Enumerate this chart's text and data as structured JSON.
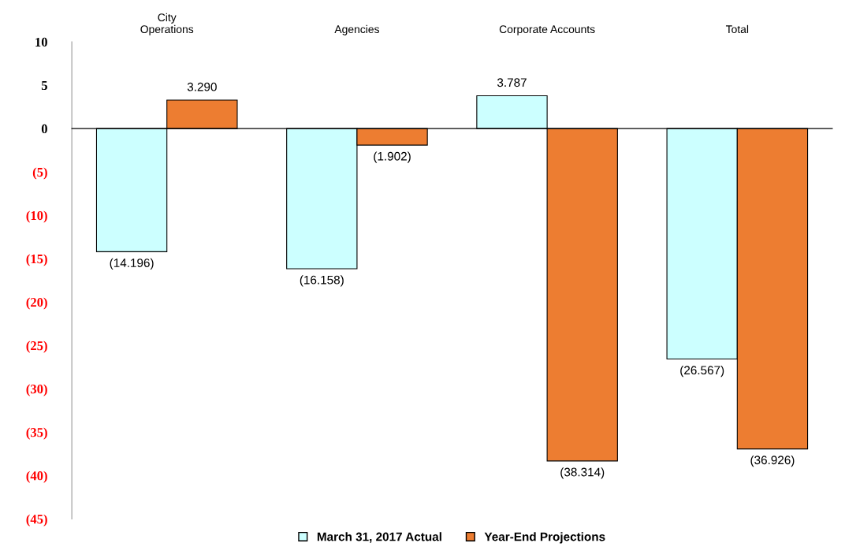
{
  "chart_data": {
    "type": "bar",
    "categories": [
      "City\nOperations",
      "Agencies",
      "Corporate Accounts",
      "Total"
    ],
    "series": [
      {
        "name": "March 31, 2017 Actual",
        "color": "#ccffff",
        "values": [
          -14.196,
          -16.158,
          3.787,
          -26.567
        ],
        "value_labels": [
          "(14.196)",
          "(16.158)",
          "3.787",
          "(26.567)"
        ]
      },
      {
        "name": "Year-End Projections",
        "color": "#ed7d31",
        "values": [
          3.29,
          -1.902,
          -38.314,
          -36.926
        ],
        "value_labels": [
          "3.290",
          "(1.902)",
          "(38.314)",
          "(36.926)"
        ]
      }
    ],
    "ylim": [
      -45,
      10
    ],
    "yticks": [
      10,
      5,
      0,
      {
        "value": -5,
        "label": "(5)"
      },
      {
        "value": -10,
        "label": "(10)"
      },
      {
        "value": -15,
        "label": "(15)"
      },
      {
        "value": -20,
        "label": "(20)"
      },
      {
        "value": -25,
        "label": "(25)"
      },
      {
        "value": -30,
        "label": "(30)"
      },
      {
        "value": -35,
        "label": "(35)"
      },
      {
        "value": -40,
        "label": "(40)"
      },
      {
        "value": -45,
        "label": "(45)"
      }
    ],
    "legend": "bottom"
  }
}
